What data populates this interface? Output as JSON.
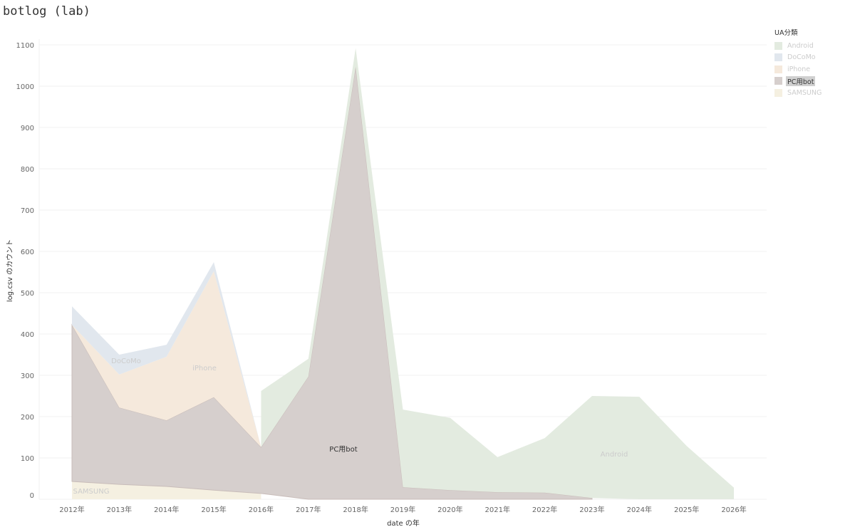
{
  "title": "botlog (lab)",
  "legend": {
    "title": "UA分類",
    "items": [
      {
        "name": "Android",
        "color": "#e3ebe0"
      },
      {
        "name": "DoCoMo",
        "color": "#e1e7ee"
      },
      {
        "name": "iPhone",
        "color": "#f5e9dc"
      },
      {
        "name": "PC用bot",
        "color": "#d6cfcd",
        "selected": true
      },
      {
        "name": "SAMSUNG",
        "color": "#f5f0e1"
      }
    ]
  },
  "chart_data": {
    "type": "area",
    "stacked": true,
    "xlabel": "date の年",
    "ylabel": "log.csv のカウント",
    "ylim": [
      0,
      1100
    ],
    "yticks": [
      0,
      100,
      200,
      300,
      400,
      500,
      600,
      700,
      800,
      900,
      1000,
      1100
    ],
    "categories": [
      "2012年",
      "2013年",
      "2014年",
      "2015年",
      "2016年",
      "2017年",
      "2018年",
      "2019年",
      "2020年",
      "2021年",
      "2022年",
      "2023年",
      "2024年",
      "2025年",
      "2026年"
    ],
    "grid": true,
    "legend": "right",
    "series": [
      {
        "name": "SAMSUNG",
        "label": "SAMSUNG",
        "values": [
          43,
          36,
          31,
          22,
          14,
          null,
          null,
          null,
          null,
          null,
          null,
          null,
          null,
          null,
          null
        ]
      },
      {
        "name": "PC用bot",
        "label": "PC用bot",
        "values": [
          379,
          186,
          160,
          225,
          112,
          297,
          1047,
          29,
          22,
          17,
          16,
          3,
          null,
          null,
          null
        ]
      },
      {
        "name": "iPhone",
        "label": "iPhone",
        "values": [
          0,
          80,
          154,
          305,
          0,
          null,
          null,
          null,
          null,
          null,
          null,
          null,
          null,
          null,
          null
        ]
      },
      {
        "name": "DoCoMo",
        "label": "DoCoMo",
        "values": [
          45,
          48,
          29,
          22,
          0,
          null,
          null,
          null,
          null,
          null,
          null,
          null,
          null,
          null,
          null
        ]
      },
      {
        "name": "Android",
        "label": "Android",
        "values": [
          null,
          null,
          null,
          null,
          136,
          43,
          45,
          188,
          175,
          85,
          132,
          247,
          248,
          129,
          28
        ]
      }
    ]
  }
}
